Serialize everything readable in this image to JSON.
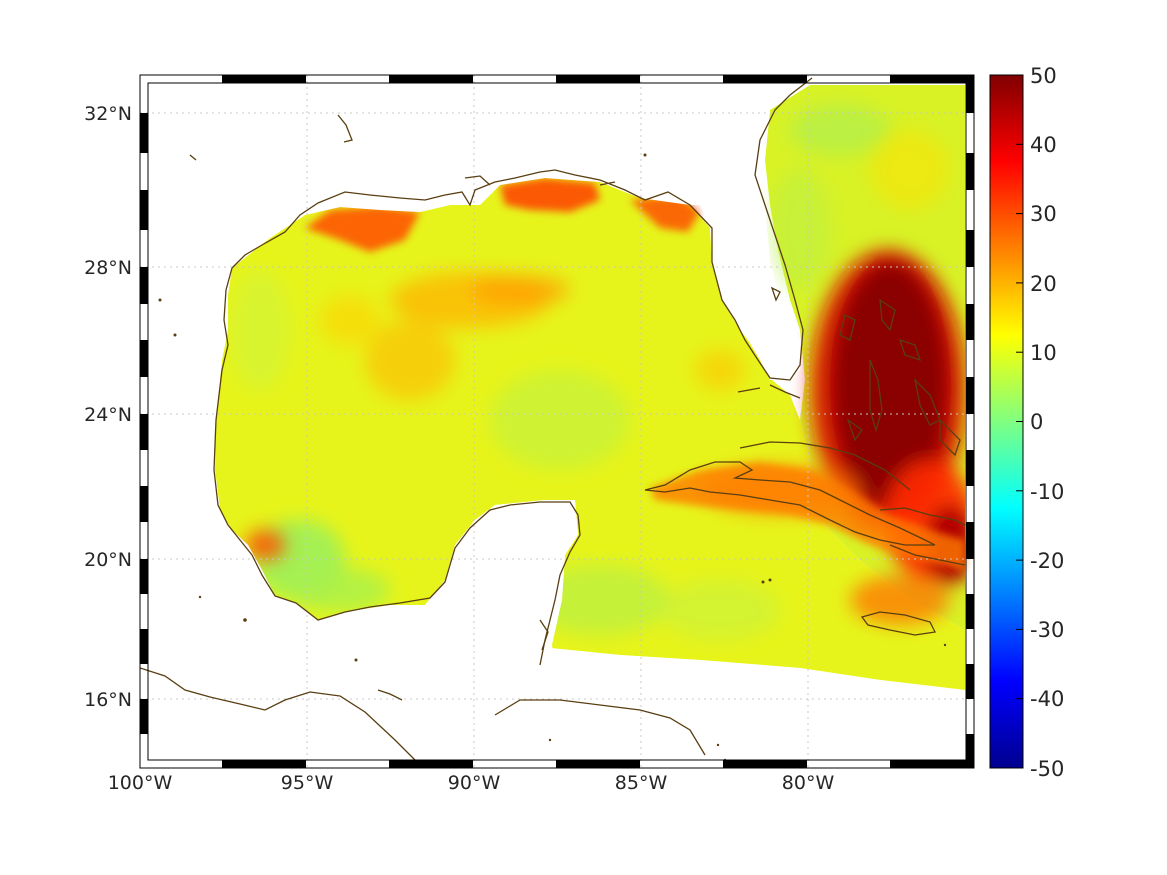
{
  "map": {
    "type": "filled-map",
    "projection": "mercator",
    "lon_range": [
      -100,
      -75.2
    ],
    "lat_range": [
      14.2,
      33.1
    ],
    "xticks": [
      {
        "value": -100,
        "label": "100°W"
      },
      {
        "value": -95,
        "label": "95°W"
      },
      {
        "value": -90,
        "label": "90°W"
      },
      {
        "value": -85,
        "label": "85°W"
      },
      {
        "value": -80,
        "label": "80°W"
      }
    ],
    "yticks": [
      {
        "value": 16,
        "label": "16°N"
      },
      {
        "value": 20,
        "label": "20°N"
      },
      {
        "value": 24,
        "label": "24°N"
      },
      {
        "value": 28,
        "label": "28°N"
      },
      {
        "value": 32,
        "label": "32°N"
      }
    ],
    "grid": true,
    "coastline_color": "#5a3e12",
    "land_color": "#ffffff",
    "colorbar": {
      "colormap": "jet",
      "clim": [
        -50,
        50
      ],
      "ticks": [
        "50",
        "40",
        "30",
        "20",
        "10",
        "0",
        "-10",
        "-20",
        "-30",
        "-40",
        "-50"
      ]
    },
    "field_summary": [
      {
        "region": "Gulf of Mexico interior",
        "value_range": [
          5,
          15
        ]
      },
      {
        "region": "Central northern Gulf band",
        "value_range": [
          18,
          25
        ]
      },
      {
        "region": "Louisiana / Mississippi shelf",
        "value_range": [
          25,
          35
        ]
      },
      {
        "region": "Bahamas",
        "value_range": [
          40,
          50
        ]
      },
      {
        "region": "Windward Passage / Haiti",
        "value_range": [
          35,
          50
        ]
      },
      {
        "region": "Atlantic off Georgia",
        "value_range": [
          5,
          18
        ]
      }
    ]
  }
}
